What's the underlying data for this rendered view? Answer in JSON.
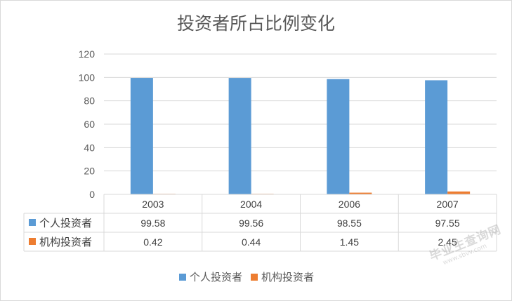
{
  "chart_data": {
    "type": "bar",
    "title": "投资者所占比例变化",
    "categories": [
      "2003",
      "2004",
      "2006",
      "2007"
    ],
    "series": [
      {
        "name": "个人投资者",
        "color": "#5b9bd5",
        "values": [
          99.58,
          99.56,
          98.55,
          97.55
        ],
        "labels": [
          "99.58",
          "99.56",
          "98.55",
          "97.55"
        ]
      },
      {
        "name": "机构投资者",
        "color": "#ed7d31",
        "values": [
          0.42,
          0.44,
          1.45,
          2.45
        ],
        "labels": [
          "0.42",
          "0.44",
          "1.45",
          "2.45"
        ]
      }
    ],
    "ylim": [
      0,
      120
    ],
    "yticks": [
      "0",
      "20",
      "40",
      "60",
      "80",
      "100",
      "120"
    ],
    "grid": true,
    "legend_position": "bottom",
    "data_table": true
  },
  "watermark": {
    "main": "毕业生查询网",
    "sub": "www.sbvv.com"
  }
}
